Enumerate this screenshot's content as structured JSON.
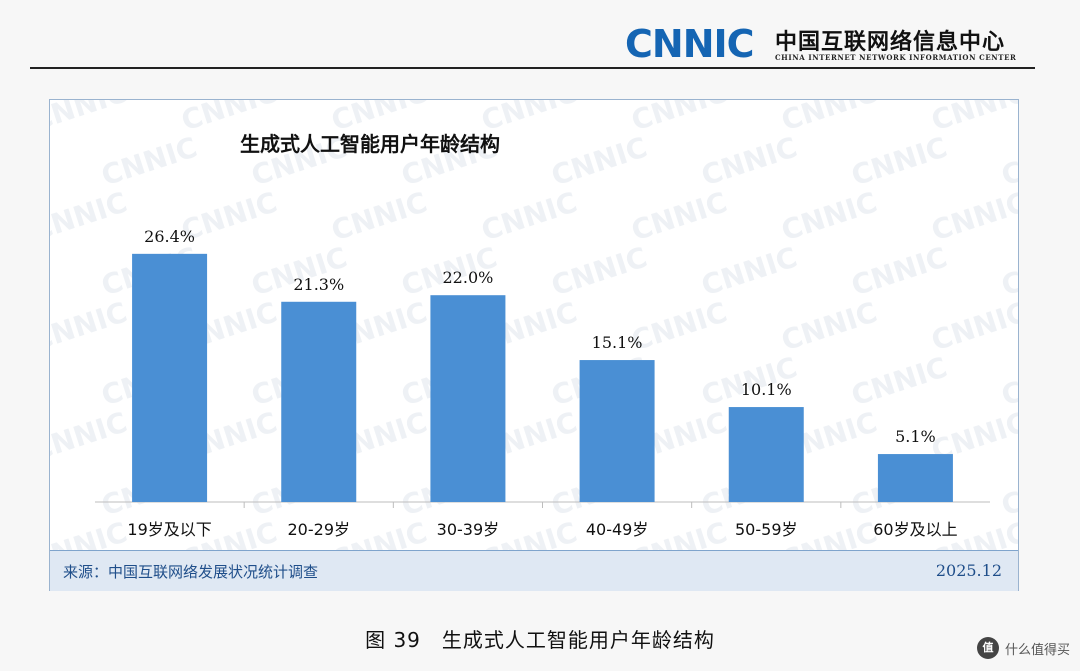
{
  "header": {
    "logo_mark": "CNNIC",
    "logo_cn": "中国互联网络信息中心",
    "logo_en": "CHINA INTERNET NETWORK INFORMATION CENTER",
    "brand_color": "#1565b3"
  },
  "chart_data": {
    "type": "bar",
    "title": "生成式人工智能用户年龄结构",
    "categories": [
      "19岁及以下",
      "20-29岁",
      "30-39岁",
      "40-49岁",
      "50-59岁",
      "60岁及以上"
    ],
    "values": [
      26.4,
      21.3,
      22.0,
      15.1,
      10.1,
      5.1
    ],
    "value_labels": [
      "26.4%",
      "21.3%",
      "22.0%",
      "15.1%",
      "10.1%",
      "5.1%"
    ],
    "unit": "%",
    "bar_color": "#4a8fd4",
    "ylim": [
      0,
      30
    ],
    "grid": false,
    "legend": "none"
  },
  "source": {
    "text": "来源：中国互联网络发展状况统计调查",
    "date": "2025.12"
  },
  "caption": "图 39　生成式人工智能用户年龄结构",
  "credit": {
    "icon": "值",
    "text": "什么值得买"
  }
}
